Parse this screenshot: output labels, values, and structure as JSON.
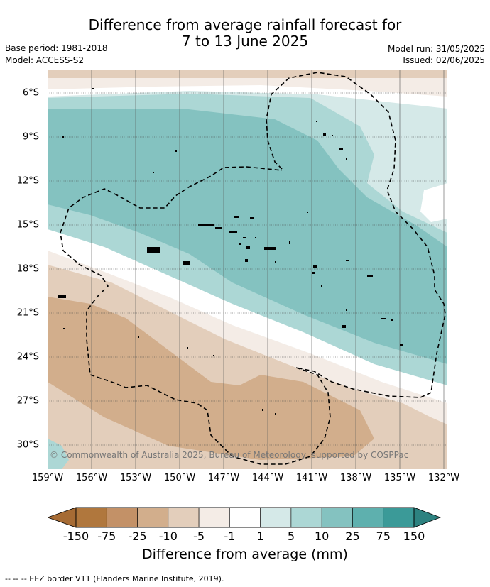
{
  "title": {
    "line1": "Difference from average rainfall forecast for",
    "line2": "7 to 13 June 2025"
  },
  "meta": {
    "base_period": "Base period: 1981-2018",
    "model": "Model: ACCESS-S2",
    "model_run": "Model run: 31/05/2025",
    "issued": "Issued: 02/06/2025"
  },
  "lat_labels": [
    "6°S",
    "9°S",
    "12°S",
    "15°S",
    "18°S",
    "21°S",
    "24°S",
    "27°S",
    "30°S"
  ],
  "lon_labels": [
    "159°W",
    "156°W",
    "153°W",
    "150°W",
    "147°W",
    "144°W",
    "141°W",
    "138°W",
    "135°W",
    "132°W"
  ],
  "copyright": "© Commonwealth of Australia 2025, Bureau of Meteorology, supported by COSPPac",
  "colorbar": {
    "labels": [
      "-150",
      "-75",
      "-25",
      "-10",
      "-5",
      "-1",
      "1",
      "5",
      "10",
      "25",
      "75",
      "150"
    ],
    "colors": [
      "#b0773d",
      "#c39167",
      "#d2ae8c",
      "#e3cebb",
      "#f4ece6",
      "#ffffff",
      "#d5e9e8",
      "#acd7d5",
      "#84c2c0",
      "#5eb0ae",
      "#3b9a98"
    ],
    "title": "Difference from average (mm)"
  },
  "legend_text": "--  --  -- EEZ border V11 (Flanders Marine Institute, 2019)."
}
